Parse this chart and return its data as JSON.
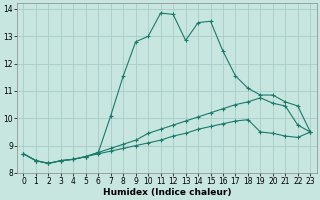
{
  "xlabel": "Humidex (Indice chaleur)",
  "background_color": "#c8e6e0",
  "grid_color": "#a8ccc8",
  "line_color": "#1a7a6a",
  "xlim": [
    -0.5,
    23.5
  ],
  "ylim": [
    8,
    14.2
  ],
  "x_ticks": [
    0,
    1,
    2,
    3,
    4,
    5,
    6,
    7,
    8,
    9,
    10,
    11,
    12,
    13,
    14,
    15,
    16,
    17,
    18,
    19,
    20,
    21,
    22,
    23
  ],
  "y_ticks": [
    8,
    9,
    10,
    11,
    12,
    13,
    14
  ],
  "line1_x": [
    0,
    1,
    2,
    3,
    4,
    5,
    6,
    7,
    8,
    9,
    10,
    11,
    12,
    13,
    14,
    15,
    16,
    17,
    18,
    19,
    20,
    21,
    22,
    23
  ],
  "line1_y": [
    8.7,
    8.45,
    8.35,
    8.45,
    8.5,
    8.6,
    8.75,
    10.1,
    11.55,
    12.8,
    13.0,
    13.85,
    13.8,
    12.85,
    13.5,
    13.55,
    12.45,
    11.55,
    11.1,
    10.85,
    10.85,
    10.6,
    10.45,
    9.5
  ],
  "line2_x": [
    0,
    1,
    2,
    3,
    4,
    5,
    6,
    7,
    8,
    9,
    10,
    11,
    12,
    13,
    14,
    15,
    16,
    17,
    18,
    19,
    20,
    21,
    22,
    23
  ],
  "line2_y": [
    8.7,
    8.45,
    8.35,
    8.45,
    8.5,
    8.6,
    8.75,
    8.9,
    9.05,
    9.2,
    9.45,
    9.6,
    9.75,
    9.9,
    10.05,
    10.2,
    10.35,
    10.5,
    10.6,
    10.75,
    10.55,
    10.45,
    9.75,
    9.5
  ],
  "line3_x": [
    0,
    1,
    2,
    3,
    4,
    5,
    6,
    7,
    8,
    9,
    10,
    11,
    12,
    13,
    14,
    15,
    16,
    17,
    18,
    19,
    20,
    21,
    22,
    23
  ],
  "line3_y": [
    8.7,
    8.45,
    8.35,
    8.45,
    8.5,
    8.6,
    8.7,
    8.8,
    8.9,
    9.0,
    9.1,
    9.2,
    9.35,
    9.45,
    9.6,
    9.7,
    9.8,
    9.9,
    9.95,
    9.5,
    9.45,
    9.35,
    9.3,
    9.5
  ],
  "tick_fontsize": 5.5,
  "xlabel_fontsize": 6.5
}
